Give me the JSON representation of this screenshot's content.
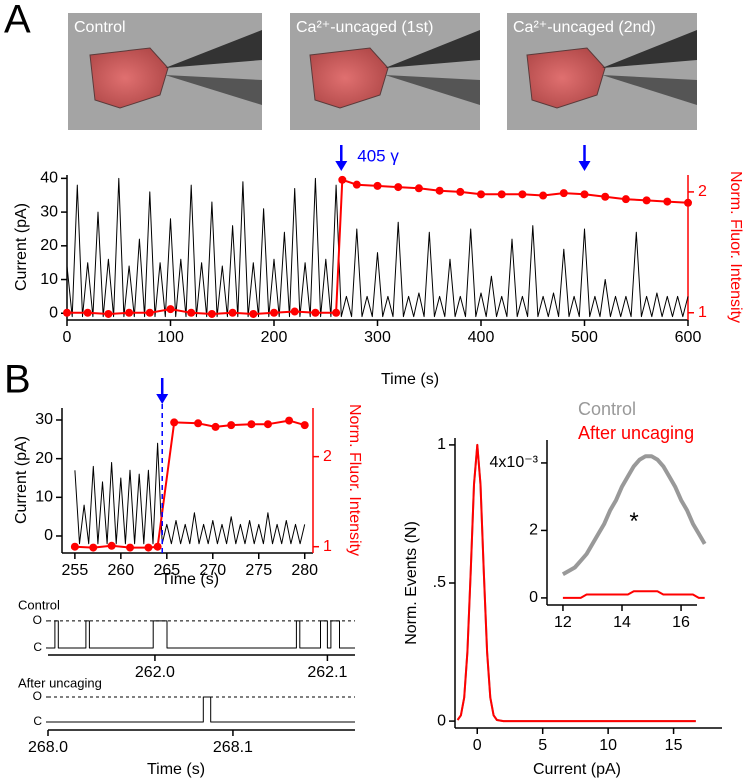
{
  "panels": [
    "A",
    "B"
  ],
  "images": [
    {
      "label": "Control"
    },
    {
      "label": "Ca²⁺-uncaged (1st)"
    },
    {
      "label": "Ca²⁺-uncaged (2nd)"
    }
  ],
  "chart_data": [
    {
      "type": "line",
      "xlabel": "Time (s)",
      "ylabel": "Current (pA)",
      "y2label": "Norm. Fluor. Intensity",
      "annotation": "405 γ",
      "xlim": [
        0,
        600
      ],
      "xticks": [
        0,
        100,
        200,
        300,
        400,
        500,
        600
      ],
      "ylim": [
        -2,
        41
      ],
      "yticks": [
        0,
        10,
        20,
        30,
        40
      ],
      "y2lim": [
        0.94,
        2.14
      ],
      "y2ticks": [
        1,
        2
      ],
      "y2color": "#ff0000",
      "events": [
        265,
        500
      ],
      "event_color": "#0000ff",
      "event_line": false,
      "series": [
        {
          "color": "#000000",
          "markers": false,
          "x": [
            0,
            5,
            10,
            15,
            20,
            25,
            30,
            35,
            40,
            45,
            50,
            55,
            60,
            65,
            70,
            75,
            80,
            85,
            90,
            95,
            100,
            105,
            110,
            115,
            120,
            125,
            130,
            135,
            140,
            145,
            150,
            155,
            160,
            165,
            170,
            175,
            180,
            185,
            190,
            195,
            200,
            205,
            210,
            215,
            220,
            225,
            230,
            235,
            240,
            245,
            250,
            255,
            260,
            265,
            270,
            275,
            280,
            285,
            290,
            295,
            300,
            305,
            310,
            315,
            320,
            325,
            330,
            335,
            340,
            345,
            350,
            355,
            360,
            365,
            370,
            375,
            380,
            385,
            390,
            395,
            400,
            405,
            410,
            415,
            420,
            425,
            430,
            435,
            440,
            445,
            450,
            455,
            460,
            465,
            470,
            475,
            480,
            485,
            490,
            495,
            500,
            505,
            510,
            515,
            520,
            525,
            530,
            535,
            540,
            545,
            550,
            555,
            560,
            565,
            570,
            575,
            580,
            585,
            590,
            595,
            600
          ],
          "values": [
            14,
            -1,
            38,
            -1,
            15,
            -1,
            30,
            -1,
            16,
            -1,
            40,
            -1,
            14,
            -1,
            22,
            -1,
            36,
            -1,
            15,
            -1,
            28,
            -1,
            16,
            -1,
            38,
            -1,
            15,
            -1,
            33,
            -1,
            14,
            -1,
            26,
            -1,
            39,
            -1,
            15,
            -1,
            31,
            -1,
            16,
            -1,
            24,
            -1,
            37,
            -1,
            15,
            -1,
            40,
            -1,
            16,
            -1,
            38,
            -1,
            5,
            -1,
            25,
            -1,
            5,
            -1,
            18,
            -1,
            5,
            -1,
            27,
            -1,
            5,
            -1,
            6,
            -1,
            24,
            -1,
            5,
            -1,
            16,
            -1,
            5,
            -1,
            25,
            -1,
            6,
            -1,
            11,
            -1,
            5,
            -1,
            22,
            -1,
            5,
            -1,
            26,
            -1,
            5,
            -1,
            6,
            -1,
            19,
            -1,
            5,
            -1,
            25,
            -1,
            5,
            -1,
            10,
            -1,
            5,
            -1,
            5,
            -1,
            24,
            -1,
            5,
            -1,
            6,
            -1,
            5,
            -1,
            5,
            -1,
            5
          ]
        },
        {
          "color": "#ff0000",
          "markers": true,
          "axis": "y2",
          "x": [
            0,
            20,
            40,
            60,
            80,
            100,
            120,
            140,
            160,
            180,
            200,
            220,
            240,
            260,
            266,
            280,
            300,
            320,
            340,
            360,
            380,
            400,
            420,
            440,
            460,
            480,
            500,
            520,
            540,
            560,
            580,
            600
          ],
          "values": [
            1.0,
            1.0,
            0.99,
            1.0,
            1.0,
            1.03,
            1.0,
            0.99,
            1.0,
            0.99,
            1.0,
            1.01,
            1.0,
            1.0,
            2.1,
            2.06,
            2.05,
            2.04,
            2.03,
            2.01,
            2.0,
            1.98,
            1.98,
            1.98,
            1.97,
            1.99,
            1.98,
            1.96,
            1.94,
            1.93,
            1.92,
            1.91
          ]
        }
      ]
    },
    {
      "type": "line",
      "xlabel": "Time (s)",
      "ylabel": "Current (pA)",
      "y2label": "Norm. Fluor. Intensity",
      "xlim": [
        253.6,
        280.9
      ],
      "xticks": [
        255,
        260,
        265,
        270,
        275,
        280
      ],
      "ylim": [
        -4.4,
        33.1
      ],
      "yticks": [
        0,
        10,
        20,
        30
      ],
      "y2lim": [
        0.93,
        2.54
      ],
      "y2ticks": [
        1,
        2
      ],
      "y2color": "#ff0000",
      "events": [
        264.5
      ],
      "event_color": "#0000ff",
      "event_line": true,
      "series": [
        {
          "color": "#000000",
          "markers": false,
          "x": [
            255,
            255.5,
            256,
            256.5,
            257,
            257.5,
            258,
            258.5,
            259,
            259.5,
            260,
            260.5,
            261,
            261.5,
            262,
            262.5,
            263,
            263.5,
            264,
            264.5,
            265,
            265.5,
            266,
            266.5,
            267,
            267.5,
            268,
            268.5,
            269,
            269.5,
            270,
            270.5,
            271,
            271.5,
            272,
            272.5,
            273,
            273.5,
            274,
            274.5,
            275,
            275.5,
            276,
            276.5,
            277,
            277.5,
            278,
            278.5,
            279,
            279.5,
            280
          ],
          "values": [
            17,
            -2,
            8,
            -2,
            18,
            -2,
            14,
            -2,
            19,
            -2,
            15,
            -2,
            17,
            -2,
            16,
            -2,
            17,
            -2,
            24,
            -2,
            3,
            -2,
            4,
            -2,
            3,
            -2,
            6,
            -2,
            3,
            -2,
            4,
            -2,
            3,
            -2,
            5,
            -2,
            3,
            -2,
            4,
            -2,
            3,
            -2,
            6,
            -2,
            3,
            -2,
            4,
            -2,
            3,
            -2,
            3
          ]
        },
        {
          "color": "#ff0000",
          "markers": true,
          "axis": "y2",
          "x": [
            255,
            257,
            259,
            261,
            263,
            264,
            265.8,
            268.4,
            270.3,
            272,
            274.2,
            276,
            278.3,
            280
          ],
          "values": [
            1.0,
            0.99,
            1.01,
            0.99,
            0.99,
            1.0,
            2.38,
            2.37,
            2.33,
            2.35,
            2.36,
            2.36,
            2.4,
            2.35
          ]
        }
      ]
    },
    {
      "type": "line",
      "title": "Control",
      "xlim": [
        261.938,
        262.116
      ],
      "xticks": [
        {
          "value": 262,
          "label": "262.0"
        },
        262.1
      ],
      "ylim": [
        -0.26,
        1.33
      ],
      "yticks": [
        {
          "value": 0,
          "label": "C"
        },
        {
          "value": 1,
          "label": "O"
        }
      ],
      "y_axis_line": false,
      "reference_lines": [
        1
      ],
      "series": [
        {
          "color": "#000000",
          "markers": false,
          "x": [
            261.938,
            261.942,
            261.942,
            261.944,
            261.944,
            261.96,
            261.96,
            261.962,
            261.962,
            261.999,
            261.999,
            262.007,
            262.007,
            262.082,
            262.082,
            262.084,
            262.084,
            262.096,
            262.096,
            262.1,
            262.1,
            262.102,
            262.102,
            262.107,
            262.107,
            262.116
          ],
          "values": [
            0,
            0,
            1,
            1,
            0,
            0,
            1,
            1,
            0,
            0,
            1,
            1,
            0,
            0,
            1,
            1,
            0,
            0,
            1,
            1,
            0,
            0,
            1,
            1,
            0,
            0
          ]
        }
      ]
    },
    {
      "type": "line",
      "title": "After uncaging",
      "xlabel": "Time (s)",
      "xlim": [
        268.0,
        268.166
      ],
      "xticks": [
        {
          "value": 268,
          "label": "268.0"
        },
        268.1
      ],
      "ylim": [
        -0.32,
        1.36
      ],
      "yticks": [
        {
          "value": 0,
          "label": "C"
        },
        {
          "value": 1,
          "label": "O"
        }
      ],
      "y_axis_line": false,
      "reference_lines": [
        1
      ],
      "series": [
        {
          "color": "#000000",
          "markers": false,
          "x": [
            268.0,
            268.084,
            268.084,
            268.088,
            268.088,
            268.166
          ],
          "values": [
            0,
            0,
            1,
            1,
            0,
            0
          ]
        }
      ]
    },
    {
      "type": "line",
      "xlabel": "Current (pA)",
      "ylabel": "Norm. Events (N)",
      "xlim": [
        -1.7,
        18.7
      ],
      "xticks": [
        0,
        5,
        10,
        15
      ],
      "ylim": [
        -0.025,
        1.025
      ],
      "yticks": [
        0,
        {
          "value": 0.5,
          "label": ".5"
        },
        1
      ],
      "series": [
        {
          "color": "#999999",
          "markers": false,
          "x": [
            -1.5,
            -1.25,
            -1,
            -0.75,
            -0.5,
            -0.25,
            0,
            0.25,
            0.5,
            0.75,
            1,
            1.25,
            1.5,
            2,
            4,
            6,
            8,
            10,
            12,
            14,
            16,
            16.7
          ],
          "values": [
            0.004,
            0.021,
            0.085,
            0.25,
            0.54,
            0.857,
            1,
            0.857,
            0.54,
            0.25,
            0.085,
            0.021,
            0.004,
            0,
            0,
            0,
            0,
            0,
            0,
            0,
            0,
            0
          ]
        },
        {
          "color": "#ff0000",
          "markers": false,
          "x": [
            -1.5,
            -1.25,
            -1,
            -0.75,
            -0.5,
            -0.25,
            0,
            0.25,
            0.5,
            0.75,
            1,
            1.25,
            1.5,
            2,
            4,
            6,
            8,
            10,
            12,
            14,
            16,
            16.7
          ],
          "values": [
            0.004,
            0.021,
            0.085,
            0.25,
            0.54,
            0.857,
            1,
            0.857,
            0.54,
            0.25,
            0.085,
            0.021,
            0.004,
            0,
            0,
            0,
            0,
            0,
            0,
            0,
            0,
            0
          ]
        }
      ]
    },
    {
      "type": "line",
      "annotation": "*",
      "xlim": [
        11.46,
        16.54
      ],
      "xticks": [
        12,
        14,
        16
      ],
      "ylim": [
        -0.00021,
        0.00468
      ],
      "yticks": [
        0,
        {
          "value": 0.002,
          "label": "2"
        },
        {
          "value": 0.004,
          "label": "4x10⁻³"
        }
      ],
      "series": [
        {
          "name": "Control",
          "color": "#999999",
          "markers": false,
          "x": [
            12,
            12.2,
            12.4,
            12.6,
            12.8,
            13,
            13.2,
            13.4,
            13.6,
            13.8,
            14,
            14.2,
            14.4,
            14.6,
            14.8,
            15,
            15.2,
            15.4,
            15.6,
            15.8,
            16,
            16.2,
            16.4,
            16.6,
            16.8
          ],
          "values": [
            0.0007,
            0.0008,
            0.0009,
            0.0011,
            0.0013,
            0.0016,
            0.0019,
            0.0022,
            0.0026,
            0.0029,
            0.0033,
            0.0036,
            0.0039,
            0.0041,
            0.0042,
            0.0042,
            0.0041,
            0.0039,
            0.0036,
            0.0033,
            0.0029,
            0.0026,
            0.0022,
            0.0019,
            0.0016
          ]
        },
        {
          "name": "After uncaging",
          "color": "#ff0000",
          "markers": false,
          "x": [
            12,
            12.2,
            12.4,
            12.6,
            12.8,
            13,
            13.2,
            13.4,
            13.6,
            13.8,
            14,
            14.2,
            14.4,
            14.6,
            14.8,
            15,
            15.2,
            15.4,
            15.6,
            15.8,
            16,
            16.2,
            16.4,
            16.6,
            16.8
          ],
          "values": [
            0,
            0,
            0,
            0,
            0.0001,
            0.0001,
            0.0001,
            0.0001,
            0.0001,
            0.0001,
            0.0001,
            0.0001,
            0.0002,
            0.0002,
            0.0002,
            0.0002,
            0.0002,
            0.0001,
            0.0001,
            0.0001,
            0.0001,
            0.0001,
            0.0001,
            0,
            0
          ]
        }
      ]
    }
  ]
}
